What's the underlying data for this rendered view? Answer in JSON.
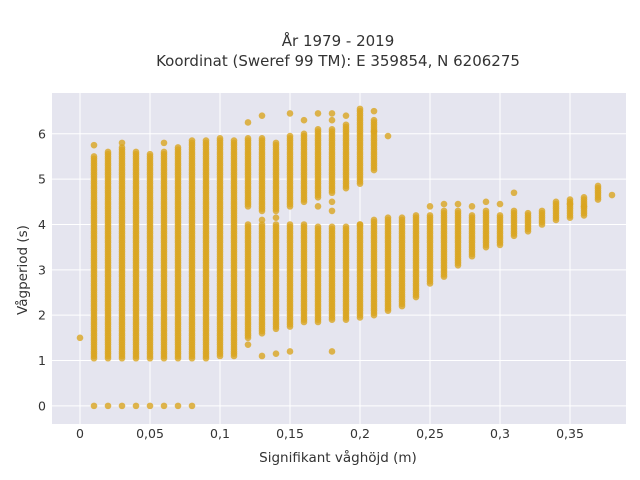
{
  "chart_data": {
    "type": "scatter",
    "title_line1": "År 1979 - 2019",
    "title_line2": "Koordinat (Sweref 99 TM): E 359854, N 6206275",
    "xlabel": "Signifikant våghöjd (m)",
    "ylabel": "Vågperiod (s)",
    "xlim": [
      -0.02,
      0.39
    ],
    "ylim": [
      -0.4,
      6.9
    ],
    "x_ticks": [
      0,
      0.05,
      0.1,
      0.15,
      0.2,
      0.25,
      0.3,
      0.35
    ],
    "x_tick_labels": [
      "0",
      "0,05",
      "0,1",
      "0,15",
      "0,2",
      "0,25",
      "0,3",
      "0,35"
    ],
    "y_ticks": [
      0,
      1,
      2,
      3,
      4,
      5,
      6
    ],
    "y_tick_labels": [
      "0",
      "1",
      "2",
      "3",
      "4",
      "5",
      "6"
    ],
    "grid": true,
    "colors": {
      "points": "#DAA520",
      "plot_bg": "#E5E5EF",
      "grid": "#FFFFFF",
      "text": "#333333"
    },
    "column_ranges": [
      {
        "x": 0.01,
        "ranges": [
          [
            1.05,
            5.5
          ]
        ]
      },
      {
        "x": 0.02,
        "ranges": [
          [
            1.05,
            5.6
          ]
        ]
      },
      {
        "x": 0.03,
        "ranges": [
          [
            1.05,
            5.7
          ]
        ]
      },
      {
        "x": 0.04,
        "ranges": [
          [
            1.05,
            5.6
          ]
        ]
      },
      {
        "x": 0.05,
        "ranges": [
          [
            1.05,
            5.55
          ]
        ]
      },
      {
        "x": 0.06,
        "ranges": [
          [
            1.05,
            5.6
          ]
        ]
      },
      {
        "x": 0.07,
        "ranges": [
          [
            1.05,
            5.7
          ]
        ]
      },
      {
        "x": 0.08,
        "ranges": [
          [
            1.05,
            5.8
          ]
        ]
      },
      {
        "x": 0.09,
        "ranges": [
          [
            1.05,
            5.85
          ]
        ]
      },
      {
        "x": 0.1,
        "ranges": [
          [
            1.1,
            5.85
          ]
        ]
      },
      {
        "x": 0.11,
        "ranges": [
          [
            1.15,
            5.85
          ]
        ]
      },
      {
        "x": 0.12,
        "ranges": [
          [
            1.5,
            4.0
          ],
          [
            4.4,
            5.9
          ]
        ]
      },
      {
        "x": 0.13,
        "ranges": [
          [
            1.6,
            4.0
          ],
          [
            4.3,
            5.9
          ]
        ]
      },
      {
        "x": 0.14,
        "ranges": [
          [
            1.7,
            4.0
          ],
          [
            4.3,
            5.8
          ]
        ]
      },
      {
        "x": 0.15,
        "ranges": [
          [
            1.75,
            4.0
          ],
          [
            4.4,
            5.95
          ]
        ]
      },
      {
        "x": 0.16,
        "ranges": [
          [
            1.85,
            4.0
          ],
          [
            4.5,
            6.0
          ]
        ]
      },
      {
        "x": 0.17,
        "ranges": [
          [
            1.85,
            3.95
          ],
          [
            4.6,
            6.1
          ]
        ]
      },
      {
        "x": 0.18,
        "ranges": [
          [
            1.9,
            3.95
          ],
          [
            4.7,
            6.1
          ]
        ]
      },
      {
        "x": 0.19,
        "ranges": [
          [
            1.9,
            3.95
          ],
          [
            4.8,
            6.2
          ]
        ]
      },
      {
        "x": 0.2,
        "ranges": [
          [
            1.95,
            4.0
          ],
          [
            4.9,
            6.5
          ]
        ]
      },
      {
        "x": 0.21,
        "ranges": [
          [
            2.0,
            4.1
          ],
          [
            5.2,
            6.3
          ]
        ]
      },
      {
        "x": 0.22,
        "ranges": [
          [
            2.1,
            4.15
          ]
        ]
      },
      {
        "x": 0.23,
        "ranges": [
          [
            2.2,
            4.15
          ]
        ]
      },
      {
        "x": 0.24,
        "ranges": [
          [
            2.4,
            4.2
          ]
        ]
      },
      {
        "x": 0.25,
        "ranges": [
          [
            2.7,
            4.2
          ]
        ]
      },
      {
        "x": 0.26,
        "ranges": [
          [
            2.85,
            4.3
          ]
        ]
      },
      {
        "x": 0.27,
        "ranges": [
          [
            3.1,
            4.3
          ]
        ]
      },
      {
        "x": 0.28,
        "ranges": [
          [
            3.3,
            4.2
          ]
        ]
      },
      {
        "x": 0.29,
        "ranges": [
          [
            3.5,
            4.3
          ]
        ]
      },
      {
        "x": 0.3,
        "ranges": [
          [
            3.6,
            4.2
          ]
        ]
      },
      {
        "x": 0.31,
        "ranges": [
          [
            3.75,
            4.3
          ]
        ]
      },
      {
        "x": 0.32,
        "ranges": [
          [
            3.85,
            4.25
          ]
        ]
      },
      {
        "x": 0.33,
        "ranges": [
          [
            4.0,
            4.3
          ]
        ]
      },
      {
        "x": 0.34,
        "ranges": [
          [
            4.1,
            4.5
          ]
        ]
      },
      {
        "x": 0.35,
        "ranges": [
          [
            4.15,
            4.55
          ]
        ]
      },
      {
        "x": 0.36,
        "ranges": [
          [
            4.2,
            4.6
          ]
        ]
      },
      {
        "x": 0.37,
        "ranges": [
          [
            4.55,
            4.8
          ]
        ]
      }
    ],
    "points": [
      [
        0.0,
        1.5
      ],
      [
        0.01,
        0
      ],
      [
        0.02,
        0
      ],
      [
        0.03,
        0
      ],
      [
        0.04,
        0
      ],
      [
        0.05,
        0
      ],
      [
        0.06,
        0
      ],
      [
        0.07,
        0
      ],
      [
        0.08,
        0
      ],
      [
        0.01,
        5.75
      ],
      [
        0.03,
        5.8
      ],
      [
        0.06,
        5.8
      ],
      [
        0.08,
        5.85
      ],
      [
        0.1,
        5.9
      ],
      [
        0.12,
        6.25
      ],
      [
        0.13,
        6.4
      ],
      [
        0.15,
        6.45
      ],
      [
        0.16,
        6.3
      ],
      [
        0.17,
        6.45
      ],
      [
        0.18,
        6.45
      ],
      [
        0.18,
        6.3
      ],
      [
        0.19,
        6.4
      ],
      [
        0.2,
        6.55
      ],
      [
        0.21,
        6.5
      ],
      [
        0.21,
        6.05
      ],
      [
        0.22,
        5.95
      ],
      [
        0.11,
        1.1
      ],
      [
        0.12,
        1.35
      ],
      [
        0.13,
        1.1
      ],
      [
        0.14,
        1.15
      ],
      [
        0.15,
        1.2
      ],
      [
        0.18,
        1.2
      ],
      [
        0.13,
        4.1
      ],
      [
        0.14,
        4.15
      ],
      [
        0.17,
        4.4
      ],
      [
        0.18,
        4.5
      ],
      [
        0.18,
        4.3
      ],
      [
        0.2,
        4.0
      ],
      [
        0.25,
        4.4
      ],
      [
        0.26,
        4.45
      ],
      [
        0.27,
        4.45
      ],
      [
        0.28,
        4.4
      ],
      [
        0.29,
        4.5
      ],
      [
        0.3,
        4.45
      ],
      [
        0.31,
        4.7
      ],
      [
        0.3,
        3.55
      ],
      [
        0.35,
        4.45
      ],
      [
        0.36,
        4.4
      ],
      [
        0.37,
        4.85
      ],
      [
        0.38,
        4.65
      ]
    ]
  }
}
